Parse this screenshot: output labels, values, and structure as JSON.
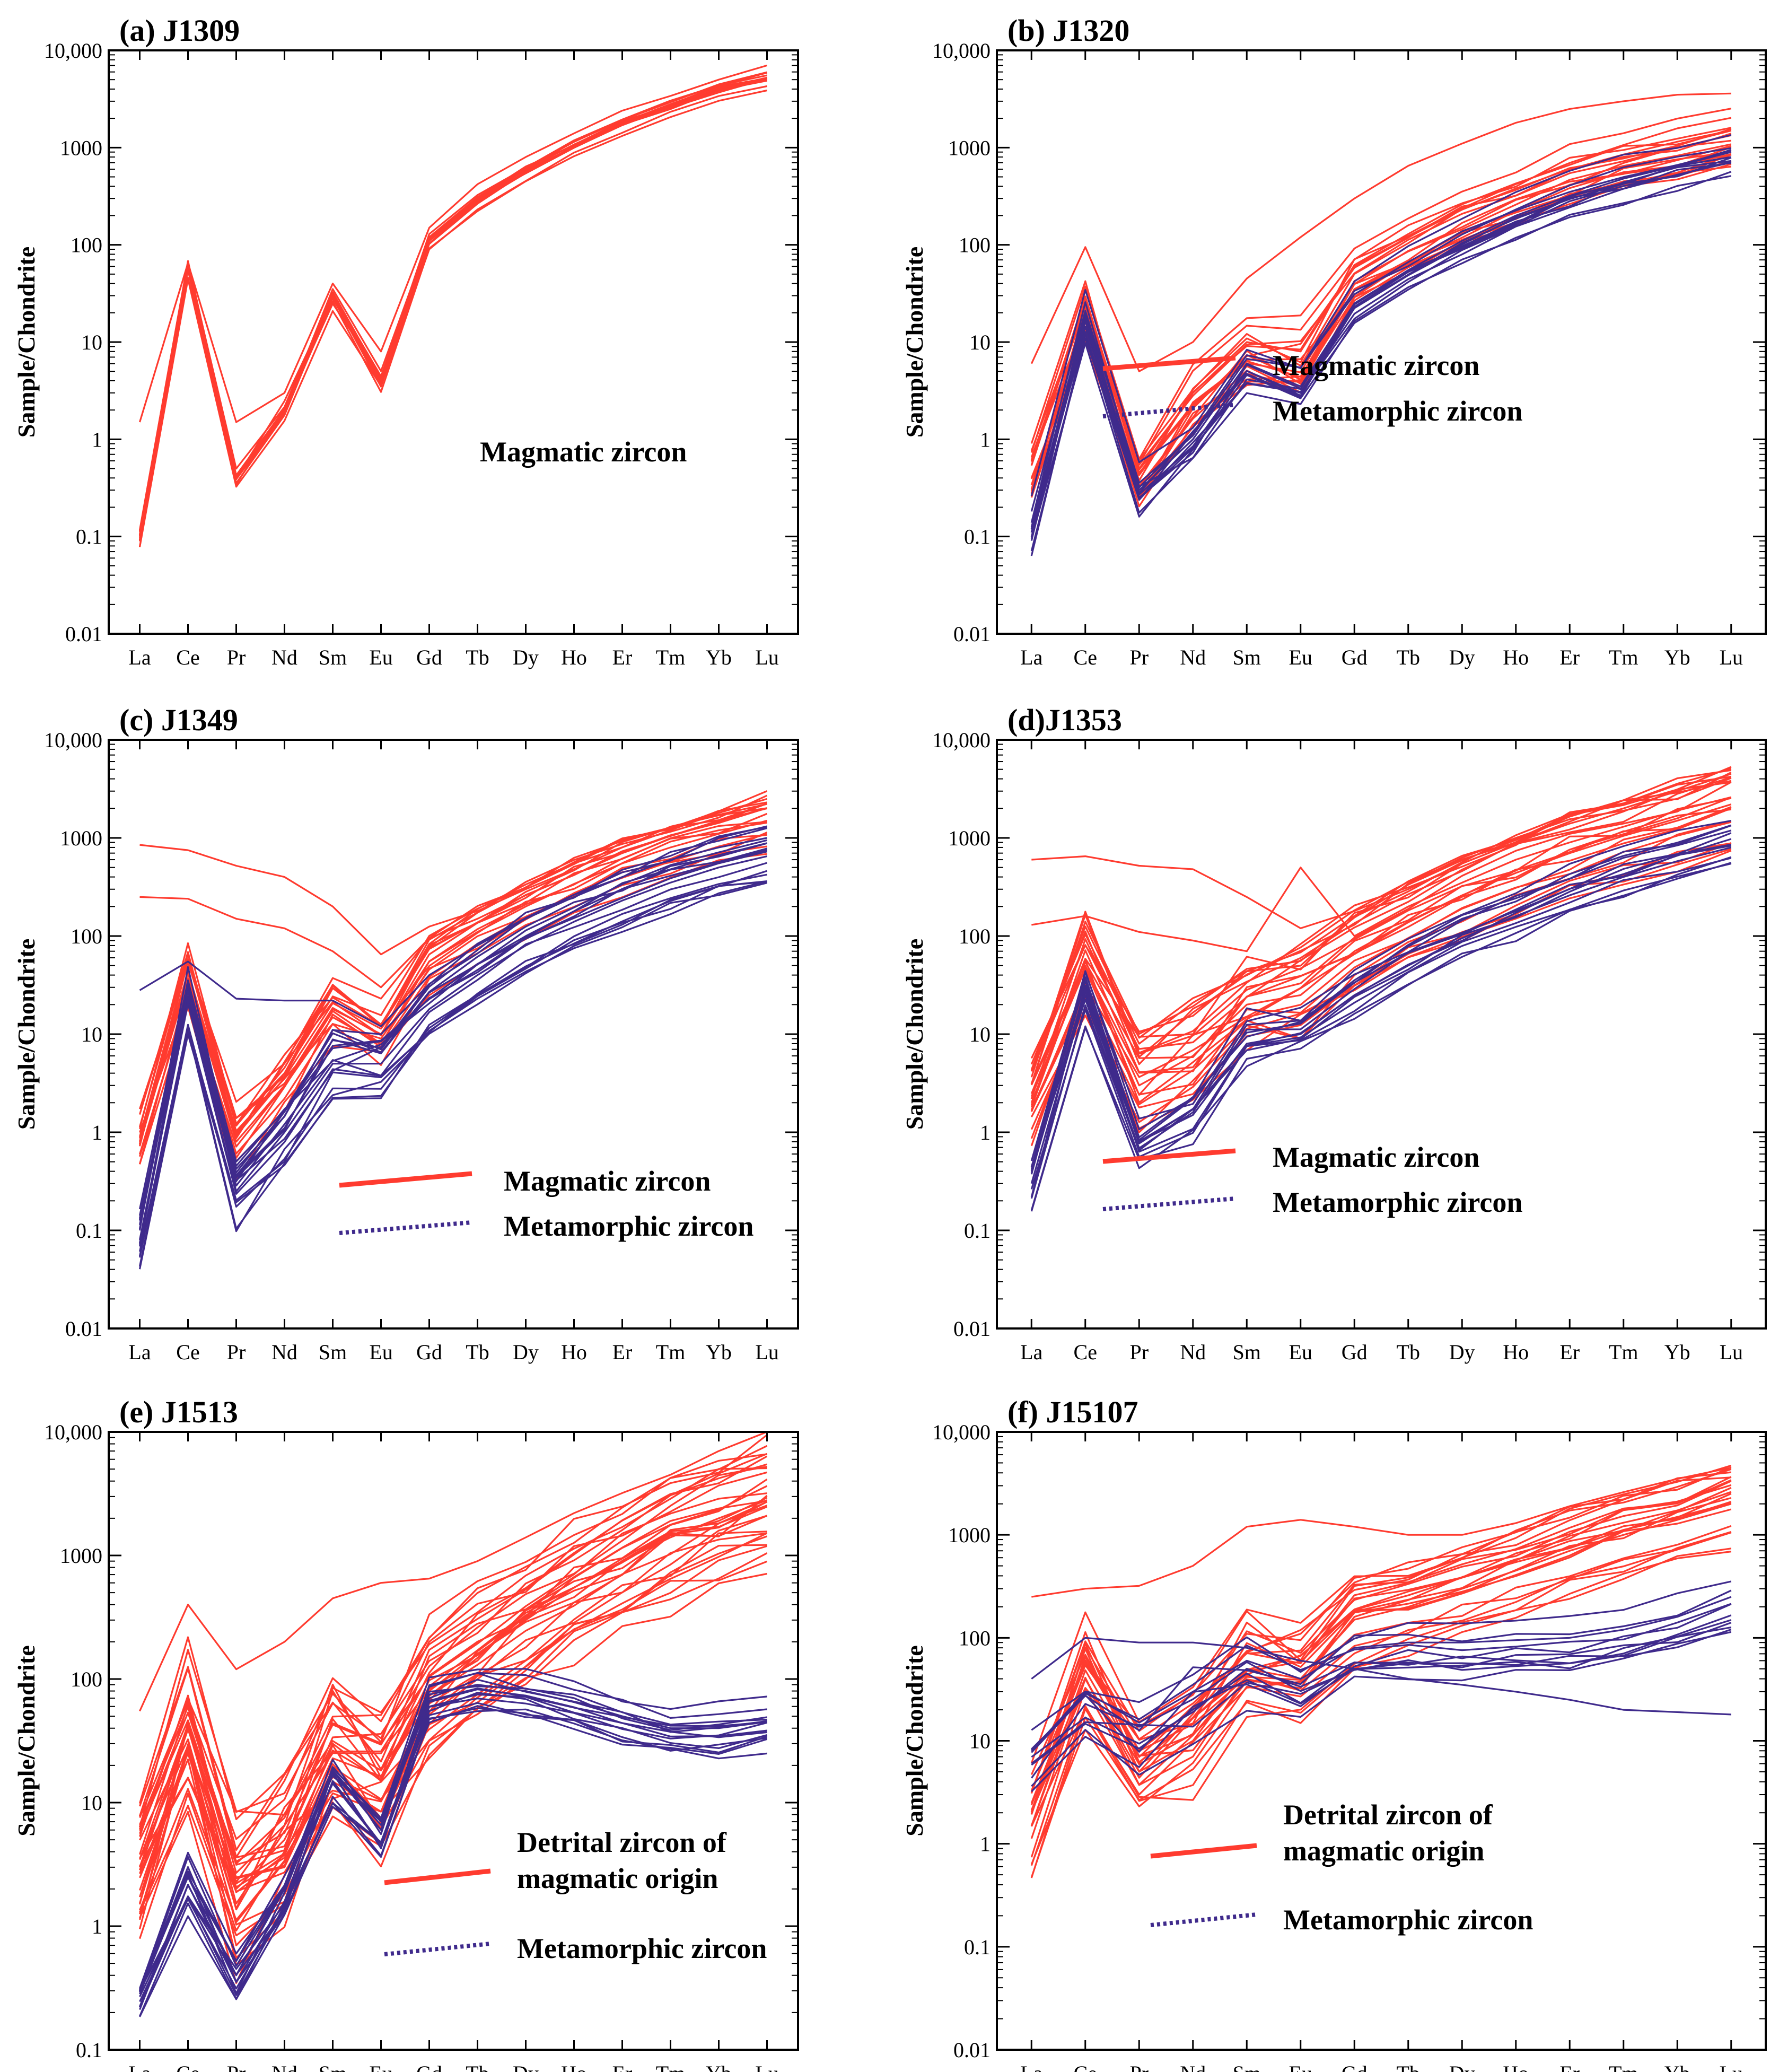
{
  "colors": {
    "magmatic": "#ff3b2f",
    "metamorphic": "#3f2a8c",
    "axis": "#000000"
  },
  "chart_data": [
    {
      "type": "line",
      "title": "(a) J1309",
      "ylabel": "Sample/Chondrite",
      "yscale": "log",
      "ylim": [
        0.01,
        10000
      ],
      "yticks": [
        "0.01",
        "0.1",
        "1",
        "10",
        "100",
        "1000",
        "10,000"
      ],
      "categories": [
        "La",
        "Ce",
        "Pr",
        "Nd",
        "Sm",
        "Eu",
        "Gd",
        "Tb",
        "Dy",
        "Ho",
        "Er",
        "Tm",
        "Yb",
        "Lu"
      ],
      "legend": [
        {
          "label": "Magmatic zircon",
          "style": "text"
        }
      ],
      "series": [
        {
          "name": "Magmatic zircon",
          "spread": 0.12,
          "count": 12,
          "outliers": [
            {
              "values": [
                1.5,
                65,
                1.5,
                3,
                40,
                8,
                150,
                420,
                800,
                1400,
                2400,
                3400,
                5000,
                7000
              ]
            }
          ],
          "values": [
            0.1,
            60,
            0.4,
            2,
            28,
            4,
            110,
            280,
            560,
            1000,
            1700,
            2600,
            3900,
            5000
          ]
        }
      ]
    },
    {
      "type": "line",
      "title": "(b) J1320",
      "ylabel": "Sample/Chondrite",
      "yscale": "log",
      "ylim": [
        0.01,
        10000
      ],
      "yticks": [
        "0.01",
        "0.1",
        "1",
        "10",
        "100",
        "1000",
        "10,000"
      ],
      "categories": [
        "La",
        "Ce",
        "Pr",
        "Nd",
        "Sm",
        "Eu",
        "Gd",
        "Tb",
        "Dy",
        "Ho",
        "Er",
        "Tm",
        "Yb",
        "Lu"
      ],
      "legend": [
        {
          "label": "Magmatic zircon",
          "style": "solid"
        },
        {
          "label": "Metamorphic zircon",
          "style": "dotted"
        }
      ],
      "series": [
        {
          "name": "Magmatic zircon",
          "spread": 0.35,
          "count": 18,
          "outliers": [
            {
              "values": [
                6,
                95,
                5,
                10,
                45,
                120,
                300,
                650,
                1100,
                1800,
                2500,
                3000,
                3500,
                3600
              ]
            }
          ],
          "values": [
            0.6,
            28,
            0.5,
            3,
            10,
            8,
            60,
            120,
            230,
            380,
            600,
            850,
            1150,
            1500
          ]
        },
        {
          "name": "Metamorphic zircon",
          "spread": 0.25,
          "count": 12,
          "values": [
            0.12,
            18,
            0.3,
            1,
            6,
            3.5,
            25,
            55,
            110,
            200,
            320,
            480,
            650,
            900
          ]
        }
      ]
    },
    {
      "type": "line",
      "title": "(c) J1349",
      "ylabel": "Sample/Chondrite",
      "yscale": "log",
      "ylim": [
        0.01,
        10000
      ],
      "yticks": [
        "0.01",
        "0.1",
        "1",
        "10",
        "100",
        "1000",
        "10,000"
      ],
      "categories": [
        "La",
        "Ce",
        "Pr",
        "Nd",
        "Sm",
        "Eu",
        "Gd",
        "Tb",
        "Dy",
        "Ho",
        "Er",
        "Tm",
        "Yb",
        "Lu"
      ],
      "legend": [
        {
          "label": "Magmatic zircon",
          "style": "solid"
        },
        {
          "label": "Metamorphic zircon",
          "style": "dotted"
        }
      ],
      "series": [
        {
          "name": "Magmatic zircon",
          "spread": 0.3,
          "count": 16,
          "outliers": [
            {
              "values": [
                850,
                750,
                520,
                400,
                200,
                65,
                125,
                180,
                300,
                480,
                800,
                1200,
                1800,
                2500
              ]
            },
            {
              "values": [
                250,
                240,
                150,
                120,
                70,
                30,
                95,
                150,
                260,
                420,
                700,
                1050,
                1500,
                2000
              ]
            }
          ],
          "values": [
            0.8,
            35,
            0.8,
            3,
            18,
            10,
            55,
            110,
            200,
            340,
            550,
            800,
            1100,
            1500
          ]
        },
        {
          "name": "Metamorphic zircon",
          "spread": 0.3,
          "count": 16,
          "outliers": [
            {
              "values": [
                28,
                55,
                23,
                22,
                22,
                12,
                40,
                80,
                150,
                250,
                400,
                600,
                800,
                1000
              ]
            }
          ],
          "values": [
            0.08,
            22,
            0.25,
            1,
            5,
            5,
            18,
            40,
            80,
            140,
            230,
            350,
            500,
            650
          ]
        }
      ]
    },
    {
      "type": "line",
      "title": "(d)J1353",
      "ylabel": "Sample/Chondrite",
      "yscale": "log",
      "ylim": [
        0.01,
        10000
      ],
      "yticks": [
        "0.01",
        "0.1",
        "1",
        "10",
        "100",
        "1000",
        "10,000"
      ],
      "categories": [
        "La",
        "Ce",
        "Pr",
        "Nd",
        "Sm",
        "Eu",
        "Gd",
        "Tb",
        "Dy",
        "Ho",
        "Er",
        "Tm",
        "Yb",
        "Lu"
      ],
      "legend": [
        {
          "label": "Magmatic zircon",
          "style": "solid"
        },
        {
          "label": "Metamorphic zircon",
          "style": "dotted"
        }
      ],
      "series": [
        {
          "name": "Magmatic zircon",
          "spread": 0.45,
          "count": 22,
          "outliers": [
            {
              "values": [
                600,
                650,
                520,
                480,
                250,
                120,
                180,
                300,
                550,
                900,
                1400,
                2000,
                3000,
                4500
              ]
            },
            {
              "values": [
                130,
                160,
                110,
                90,
                70,
                500,
                100,
                200,
                350,
                600,
                900,
                1300,
                1900,
                2600
              ]
            }
          ],
          "values": [
            2,
            50,
            3,
            6,
            20,
            25,
            70,
            140,
            260,
            440,
            700,
            1050,
            1500,
            2200
          ]
        },
        {
          "name": "Metamorphic zircon",
          "spread": 0.3,
          "count": 12,
          "values": [
            0.3,
            25,
            0.8,
            1.5,
            8,
            10,
            25,
            50,
            95,
            160,
            260,
            400,
            580,
            800
          ]
        }
      ]
    },
    {
      "type": "line",
      "title": "(e) J1513",
      "ylabel": "Sample/Chondrite",
      "yscale": "log",
      "ylim": [
        0.1,
        10000
      ],
      "yticks": [
        "0.1",
        "1",
        "10",
        "100",
        "1000",
        "10,000"
      ],
      "categories": [
        "La",
        "Ce",
        "Pr",
        "Nd",
        "Sm",
        "Eu",
        "Gd",
        "Tb",
        "Dy",
        "Ho",
        "Er",
        "Tm",
        "Yb",
        "Lu"
      ],
      "legend": [
        {
          "label": "Detrital zircon of magmatic origin",
          "style": "solid"
        },
        {
          "label": "Metamorphic zircon",
          "style": "dotted"
        }
      ],
      "series": [
        {
          "name": "Detrital zircon of magmatic origin",
          "spread": 0.55,
          "count": 30,
          "outliers": [
            {
              "values": [
                55,
                400,
                120,
                200,
                450,
                600,
                650,
                900,
                1400,
                2200,
                3200,
                4500,
                7000,
                10000
              ]
            }
          ],
          "values": [
            3,
            40,
            2,
            5,
            30,
            15,
            80,
            160,
            300,
            550,
            900,
            1400,
            2000,
            2800
          ]
        },
        {
          "name": "Metamorphic zircon",
          "spread": 0.25,
          "count": 14,
          "values": [
            0.3,
            2.5,
            0.4,
            2,
            18,
            6,
            75,
            90,
            80,
            65,
            50,
            40,
            40,
            45
          ]
        }
      ]
    },
    {
      "type": "line",
      "title": "(f) J15107",
      "ylabel": "Sample/Chondrite",
      "yscale": "log",
      "ylim": [
        0.01,
        10000
      ],
      "yticks": [
        "0.01",
        "0.1",
        "1",
        "10",
        "100",
        "1000",
        "10,000"
      ],
      "categories": [
        "La",
        "Ce",
        "Pr",
        "Nd",
        "Sm",
        "Eu",
        "Gd",
        "Tb",
        "Dy",
        "Ho",
        "Er",
        "Tm",
        "Yb",
        "Lu"
      ],
      "legend": [
        {
          "label": "Detrital zircon of magmatic origin",
          "style": "solid"
        },
        {
          "label": "Metamorphic zircon",
          "style": "dotted"
        }
      ],
      "series": [
        {
          "name": "Detrital zircon of magmatic origin",
          "spread": 0.45,
          "count": 22,
          "outliers": [
            {
              "values": [
                250,
                300,
                320,
                500,
                1200,
                1400,
                1200,
                1000,
                1000,
                1300,
                1900,
                2600,
                3500,
                4500
              ]
            }
          ],
          "values": [
            1.5,
            40,
            5,
            10,
            50,
            40,
            150,
            200,
            300,
            450,
            700,
            1000,
            1400,
            2000
          ]
        },
        {
          "name": "Metamorphic zircon",
          "spread": 0.35,
          "count": 10,
          "outliers": [
            {
              "values": [
                40,
                100,
                90,
                90,
                80,
                60,
                50,
                40,
                35,
                30,
                25,
                20,
                19,
                18
              ]
            }
          ],
          "values": [
            8,
            30,
            15,
            30,
            60,
            40,
            80,
            90,
            90,
            95,
            100,
            120,
            160,
            250
          ]
        }
      ]
    }
  ]
}
